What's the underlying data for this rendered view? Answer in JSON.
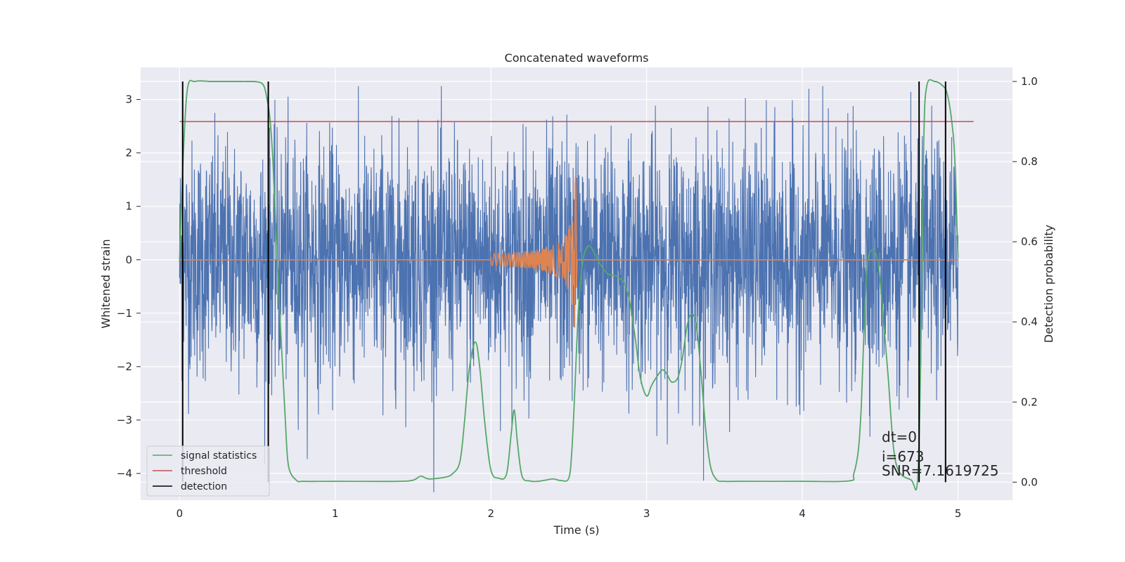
{
  "chart_data": {
    "type": "line",
    "title": "Concatenated waveforms",
    "xlabel": "Time (s)",
    "ylabel": "Whitened strain",
    "y2label": "Detection probability",
    "xlim": [
      -0.25,
      5.35
    ],
    "ylim": [
      -4.5,
      3.6
    ],
    "y2lim": [
      -0.045,
      1.035
    ],
    "xticks": [
      0,
      1,
      2,
      3,
      4,
      5
    ],
    "yticks": [
      -4,
      -3,
      -2,
      -1,
      0,
      1,
      2,
      3
    ],
    "y2ticks": [
      0.0,
      0.2,
      0.4,
      0.6,
      0.8,
      1.0
    ],
    "grid": true,
    "legend_location": "lower-left",
    "series": [
      {
        "name": "strain",
        "axis": "left",
        "color": "#4c72b0",
        "x_range": [
          0,
          5
        ],
        "noise_amplitude": 1.1,
        "peak_values": [
          3.25,
          -4.35
        ]
      },
      {
        "name": "injected waveform",
        "axis": "left",
        "color": "#dd8452",
        "x_range": [
          0,
          5
        ],
        "chirp_start": 2.0,
        "chirp_end": 2.55,
        "peak_values": [
          1.7,
          -1.5
        ]
      },
      {
        "name": "signal statistics",
        "axis": "right",
        "color": "#55a868",
        "x": [
          0,
          0.02,
          0.05,
          0.1,
          0.2,
          0.3,
          0.4,
          0.5,
          0.54,
          0.56,
          0.58,
          0.6,
          0.62,
          0.64,
          0.66,
          0.68,
          0.7,
          0.75,
          0.8,
          1.0,
          1.4,
          1.5,
          1.55,
          1.6,
          1.7,
          1.75,
          1.8,
          1.83,
          1.86,
          1.9,
          1.93,
          1.96,
          2.0,
          2.05,
          2.1,
          2.13,
          2.15,
          2.17,
          2.2,
          2.25,
          2.3,
          2.35,
          2.4,
          2.45,
          2.5,
          2.52,
          2.54,
          2.56,
          2.58,
          2.6,
          2.63,
          2.66,
          2.7,
          2.75,
          2.8,
          2.85,
          2.88,
          2.9,
          2.93,
          2.96,
          3.0,
          3.03,
          3.06,
          3.1,
          3.13,
          3.16,
          3.2,
          3.23,
          3.26,
          3.29,
          3.32,
          3.35,
          3.38,
          3.41,
          3.45,
          3.5,
          3.6,
          4.0,
          4.3,
          4.33,
          4.36,
          4.38,
          4.4,
          4.42,
          4.45,
          4.48,
          4.5,
          4.52,
          4.55,
          4.6,
          4.7,
          4.74,
          4.76,
          4.78,
          4.8,
          4.85,
          4.9,
          4.93,
          4.96,
          4.98,
          5.0
        ],
        "values": [
          0.55,
          0.78,
          0.98,
          1.0,
          1.0,
          1.0,
          1.0,
          0.999,
          0.99,
          0.96,
          0.91,
          0.8,
          0.62,
          0.45,
          0.3,
          0.15,
          0.04,
          0.005,
          0.002,
          0.002,
          0.002,
          0.005,
          0.015,
          0.008,
          0.012,
          0.02,
          0.05,
          0.15,
          0.28,
          0.35,
          0.28,
          0.15,
          0.03,
          0.01,
          0.02,
          0.12,
          0.18,
          0.1,
          0.015,
          0.003,
          0.002,
          0.005,
          0.008,
          0.004,
          0.01,
          0.08,
          0.24,
          0.42,
          0.52,
          0.57,
          0.59,
          0.575,
          0.545,
          0.52,
          0.515,
          0.5,
          0.47,
          0.43,
          0.35,
          0.26,
          0.215,
          0.24,
          0.26,
          0.28,
          0.27,
          0.25,
          0.26,
          0.31,
          0.39,
          0.42,
          0.39,
          0.27,
          0.13,
          0.04,
          0.006,
          0.002,
          0.002,
          0.002,
          0.003,
          0.02,
          0.08,
          0.2,
          0.42,
          0.55,
          0.58,
          0.56,
          0.5,
          0.41,
          0.27,
          0.05,
          0.005,
          0.004,
          0.3,
          0.85,
          0.99,
          1.0,
          0.99,
          0.97,
          0.9,
          0.8,
          0.56
        ]
      },
      {
        "name": "threshold",
        "axis": "right",
        "color": "#c44e52",
        "x": [
          0,
          5.1
        ],
        "values": [
          0.9,
          0.9
        ]
      },
      {
        "name": "detection",
        "axis": "right",
        "color": "#000000",
        "x": [
          0.02,
          0.57,
          4.75,
          4.92
        ],
        "y_range": [
          0.0,
          1.0
        ]
      }
    ],
    "legend": [
      {
        "label": "signal statistics",
        "color": "#55a868"
      },
      {
        "label": "threshold",
        "color": "#c44e52"
      },
      {
        "label": "detection",
        "color": "#000000"
      }
    ],
    "annotations": [
      "dt=0",
      "i=673",
      "SNR=7.1619725"
    ]
  }
}
